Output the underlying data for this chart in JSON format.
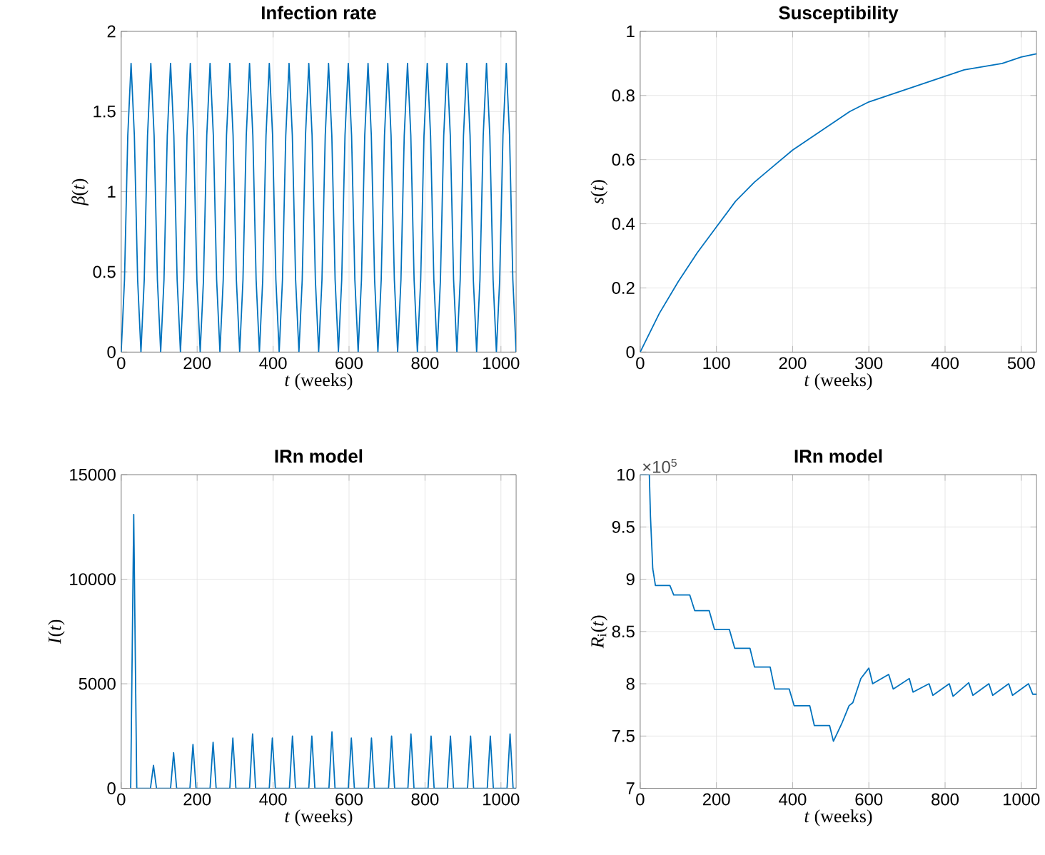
{
  "chart_data": [
    {
      "type": "line",
      "title": "Infection rate",
      "xlabel": "*t* (weeks)",
      "ylabel": "*β*(*t*)",
      "color": "#0072bd",
      "grid": true,
      "xlim": [
        0,
        1040
      ],
      "ylim": [
        0,
        2
      ],
      "xticks": [
        0,
        200,
        400,
        600,
        800,
        1000
      ],
      "yticks": [
        0,
        0.5,
        1,
        1.5,
        2
      ],
      "x": [
        0,
        8.67,
        17.33,
        26,
        34.67,
        43.33,
        52,
        60.67,
        69.33,
        78,
        86.67,
        95.33,
        104,
        112.67,
        121.33,
        130,
        138.67,
        147.33,
        156,
        164.67,
        173.33,
        182,
        190.67,
        199.33,
        208,
        216.67,
        225.33,
        234,
        242.67,
        251.33,
        260,
        268.67,
        277.33,
        286,
        294.67,
        303.33,
        312,
        320.67,
        329.33,
        338,
        346.67,
        355.33,
        364,
        372.67,
        381.33,
        390,
        398.67,
        407.33,
        416,
        424.67,
        433.33,
        442,
        450.67,
        459.33,
        468,
        476.67,
        485.33,
        494,
        502.67,
        511.33,
        520,
        528.67,
        537.33,
        546,
        554.67,
        563.33,
        572,
        580.67,
        589.33,
        598,
        606.67,
        615.33,
        624,
        632.67,
        641.33,
        650,
        658.67,
        667.33,
        676,
        684.67,
        693.33,
        702,
        710.67,
        719.33,
        728,
        736.67,
        745.33,
        754,
        762.67,
        771.33,
        780,
        788.67,
        797.33,
        806,
        814.67,
        823.33,
        832,
        840.67,
        849.33,
        858,
        866.67,
        875.33,
        884,
        892.67,
        901.33,
        910,
        918.67,
        927.33,
        936,
        944.67,
        953.33,
        962,
        970.67,
        979.33,
        988,
        996.67,
        1005.33,
        1014,
        1022.67,
        1031.33,
        1040
      ],
      "values": [
        0,
        0.45,
        1.35,
        1.8,
        1.35,
        0.45,
        0,
        0.45,
        1.35,
        1.8,
        1.35,
        0.45,
        0,
        0.45,
        1.35,
        1.8,
        1.35,
        0.45,
        0,
        0.45,
        1.35,
        1.8,
        1.35,
        0.45,
        0,
        0.45,
        1.35,
        1.8,
        1.35,
        0.45,
        0,
        0.45,
        1.35,
        1.8,
        1.35,
        0.45,
        0,
        0.45,
        1.35,
        1.8,
        1.35,
        0.45,
        0,
        0.45,
        1.35,
        1.8,
        1.35,
        0.45,
        0,
        0.45,
        1.35,
        1.8,
        1.35,
        0.45,
        0,
        0.45,
        1.35,
        1.8,
        1.35,
        0.45,
        0,
        0.45,
        1.35,
        1.8,
        1.35,
        0.45,
        0,
        0.45,
        1.35,
        1.8,
        1.35,
        0.45,
        0,
        0.45,
        1.35,
        1.8,
        1.35,
        0.45,
        0,
        0.45,
        1.35,
        1.8,
        1.35,
        0.45,
        0,
        0.45,
        1.35,
        1.8,
        1.35,
        0.45,
        0,
        0.45,
        1.35,
        1.8,
        1.35,
        0.45,
        0,
        0.45,
        1.35,
        1.8,
        1.35,
        0.45,
        0,
        0.45,
        1.35,
        1.8,
        1.35,
        0.45,
        0,
        0.45,
        1.35,
        1.8,
        1.35,
        0.45,
        0,
        0.45,
        1.35,
        1.8,
        1.35,
        0.45,
        0
      ]
    },
    {
      "type": "line",
      "title": "Susceptibility",
      "xlabel": "*t* (weeks)",
      "ylabel": "*s*(*t*)",
      "color": "#0072bd",
      "grid": true,
      "xlim": [
        0,
        520
      ],
      "ylim": [
        0,
        1
      ],
      "xticks": [
        0,
        100,
        200,
        300,
        400,
        500
      ],
      "yticks": [
        0,
        0.2,
        0.4,
        0.6,
        0.8,
        1
      ],
      "x": [
        0,
        25,
        50,
        75,
        100,
        125,
        150,
        175,
        200,
        225,
        250,
        275,
        300,
        325,
        350,
        375,
        400,
        425,
        450,
        475,
        500,
        520
      ],
      "values": [
        0,
        0.12,
        0.22,
        0.31,
        0.39,
        0.47,
        0.53,
        0.58,
        0.63,
        0.67,
        0.71,
        0.75,
        0.78,
        0.8,
        0.82,
        0.84,
        0.86,
        0.88,
        0.89,
        0.9,
        0.92,
        0.93
      ]
    },
    {
      "type": "line",
      "title": "IRn model",
      "xlabel": "*t* (weeks)",
      "ylabel": "*I*(*t*)",
      "color": "#0072bd",
      "grid": true,
      "xlim": [
        0,
        1040
      ],
      "ylim": [
        0,
        15000
      ],
      "xticks": [
        0,
        200,
        400,
        600,
        800,
        1000
      ],
      "yticks": [
        0,
        5000,
        10000,
        15000
      ],
      "x": [
        25,
        33,
        41,
        77,
        85,
        93,
        130,
        138,
        146,
        181,
        189,
        197,
        234,
        242,
        250,
        286,
        294,
        302,
        338,
        346,
        354,
        390,
        398,
        406,
        443,
        451,
        459,
        494,
        502,
        510,
        547,
        555,
        563,
        598,
        606,
        614,
        651,
        659,
        667,
        704,
        712,
        720,
        755,
        763,
        771,
        808,
        816,
        824,
        859,
        867,
        875,
        912,
        920,
        928,
        964,
        972,
        980,
        1016,
        1024,
        1032,
        1040
      ],
      "values": [
        0,
        13100,
        0,
        0,
        1100,
        0,
        0,
        1700,
        0,
        0,
        2100,
        0,
        0,
        2200,
        0,
        0,
        2400,
        0,
        0,
        2600,
        0,
        0,
        2400,
        0,
        0,
        2500,
        0,
        0,
        2500,
        0,
        0,
        2700,
        0,
        0,
        2400,
        0,
        0,
        2400,
        0,
        0,
        2500,
        0,
        0,
        2600,
        0,
        0,
        2500,
        0,
        0,
        2500,
        0,
        0,
        2500,
        0,
        0,
        2500,
        0,
        0,
        2600,
        0,
        0
      ]
    },
    {
      "type": "line",
      "title": "IRn model",
      "xlabel": "*t* (weeks)",
      "ylabel": "*R*$_{i}$(*t*)",
      "color": "#0072bd",
      "grid": true,
      "xlim": [
        0,
        1040
      ],
      "ylim": [
        7,
        10
      ],
      "xticks": [
        0,
        200,
        400,
        600,
        800,
        1000
      ],
      "yticks": [
        7,
        7.5,
        8,
        8.5,
        9,
        9.5,
        10
      ],
      "annotations": [
        "×10$^{5}$"
      ],
      "x": [
        0,
        24,
        27,
        33,
        40,
        78,
        88,
        130,
        143,
        181,
        195,
        234,
        248,
        288,
        300,
        341,
        353,
        391,
        404,
        445,
        457,
        497,
        507,
        529,
        548,
        558,
        579,
        600,
        610,
        652,
        664,
        706,
        716,
        758,
        768,
        811,
        821,
        862,
        873,
        915,
        925,
        967,
        977,
        1019,
        1030,
        1040
      ],
      "values": [
        10,
        10,
        9.6,
        9.1,
        8.94,
        8.94,
        8.85,
        8.85,
        8.7,
        8.7,
        8.52,
        8.52,
        8.34,
        8.34,
        8.16,
        8.16,
        7.95,
        7.95,
        7.79,
        7.79,
        7.6,
        7.6,
        7.45,
        7.62,
        7.79,
        7.82,
        8.05,
        8.15,
        8.0,
        8.09,
        7.95,
        8.05,
        7.92,
        8.0,
        7.89,
        8.0,
        7.88,
        8.01,
        7.89,
        8.0,
        7.89,
        8.0,
        7.89,
        8.0,
        7.9,
        7.9
      ]
    }
  ]
}
